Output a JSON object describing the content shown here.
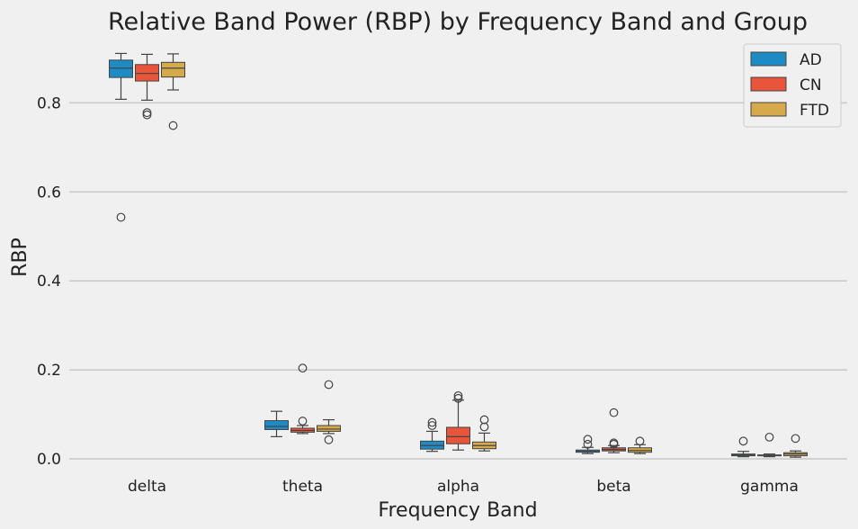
{
  "chart_data": {
    "type": "box",
    "title": "Relative Band Power (RBP) by Frequency Band and Group",
    "xlabel": "Frequency Band",
    "ylabel": "RBP",
    "ylim": [
      -0.02,
      0.93
    ],
    "yticks": [
      0.0,
      0.2,
      0.4,
      0.6,
      0.8
    ],
    "grid": "horizontal",
    "legend_position": "top-right",
    "categories": [
      "delta",
      "theta",
      "alpha",
      "beta",
      "gamma"
    ],
    "series": [
      {
        "name": "AD",
        "color": "#1f8bc4",
        "boxes": [
          {
            "whislo": 0.808,
            "q1": 0.857,
            "med": 0.878,
            "q3": 0.896,
            "whishi": 0.911,
            "fliers": [
              0.543
            ]
          },
          {
            "whislo": 0.05,
            "q1": 0.066,
            "med": 0.073,
            "q3": 0.086,
            "whishi": 0.107,
            "fliers": []
          },
          {
            "whislo": 0.017,
            "q1": 0.022,
            "med": 0.03,
            "q3": 0.04,
            "whishi": 0.062,
            "fliers": [
              0.075,
              0.082
            ]
          },
          {
            "whislo": 0.012,
            "q1": 0.015,
            "med": 0.017,
            "q3": 0.02,
            "whishi": 0.026,
            "fliers": [
              0.033,
              0.044
            ]
          },
          {
            "whislo": 0.005,
            "q1": 0.007,
            "med": 0.009,
            "q3": 0.011,
            "whishi": 0.017,
            "fliers": [
              0.04
            ]
          }
        ]
      },
      {
        "name": "CN",
        "color": "#e8553a",
        "boxes": [
          {
            "whislo": 0.806,
            "q1": 0.849,
            "med": 0.866,
            "q3": 0.886,
            "whishi": 0.909,
            "fliers": [
              0.773,
              0.778
            ]
          },
          {
            "whislo": 0.057,
            "q1": 0.06,
            "med": 0.064,
            "q3": 0.069,
            "whishi": 0.075,
            "fliers": [
              0.085,
              0.204
            ]
          },
          {
            "whislo": 0.02,
            "q1": 0.034,
            "med": 0.05,
            "q3": 0.071,
            "whishi": 0.132,
            "fliers": [
              0.136,
              0.142
            ]
          },
          {
            "whislo": 0.014,
            "q1": 0.018,
            "med": 0.021,
            "q3": 0.025,
            "whishi": 0.03,
            "fliers": [
              0.033,
              0.036,
              0.104
            ]
          },
          {
            "whislo": 0.005,
            "q1": 0.007,
            "med": 0.008,
            "q3": 0.009,
            "whishi": 0.011,
            "fliers": [
              0.049
            ]
          }
        ]
      },
      {
        "name": "FTD",
        "color": "#d6aa4a",
        "boxes": [
          {
            "whislo": 0.829,
            "q1": 0.858,
            "med": 0.878,
            "q3": 0.891,
            "whishi": 0.91,
            "fliers": [
              0.749
            ]
          },
          {
            "whislo": 0.057,
            "q1": 0.062,
            "med": 0.067,
            "q3": 0.075,
            "whishi": 0.088,
            "fliers": [
              0.043,
              0.167
            ]
          },
          {
            "whislo": 0.018,
            "q1": 0.023,
            "med": 0.03,
            "q3": 0.038,
            "whishi": 0.058,
            "fliers": [
              0.072,
              0.088
            ]
          },
          {
            "whislo": 0.012,
            "q1": 0.015,
            "med": 0.019,
            "q3": 0.025,
            "whishi": 0.032,
            "fliers": [
              0.04
            ]
          },
          {
            "whislo": 0.004,
            "q1": 0.007,
            "med": 0.011,
            "q3": 0.014,
            "whishi": 0.018,
            "fliers": [
              0.046
            ]
          }
        ]
      }
    ]
  }
}
